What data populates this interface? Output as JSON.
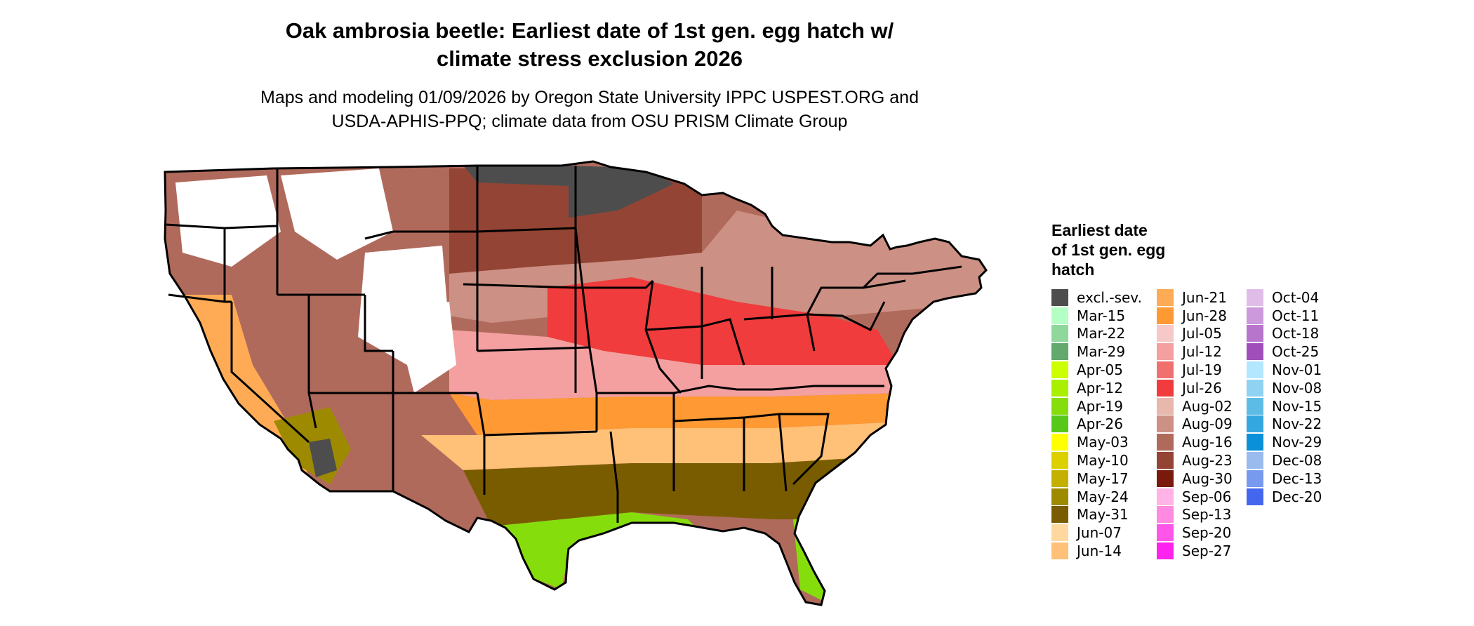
{
  "title": {
    "line1": "Oak ambrosia beetle: Earliest date of 1st gen. egg hatch w/",
    "line2": "climate stress exclusion 2026"
  },
  "subtitle": {
    "line1": "Maps and modeling 01/09/2026 by Oregon State University IPPC USPEST.ORG and",
    "line2": "USDA-APHIS-PPQ; climate data from OSU PRISM Climate Group"
  },
  "legend": {
    "title_lines": [
      "Earliest date",
      "of 1st gen. egg",
      "hatch"
    ],
    "columns": [
      [
        {
          "label": "excl.-sev.",
          "color": "#4d4d4d"
        },
        {
          "label": "Mar-15",
          "color": "#b3ffc4"
        },
        {
          "label": "Mar-22",
          "color": "#8fd79a"
        },
        {
          "label": "Mar-29",
          "color": "#63a86d"
        },
        {
          "label": "Apr-05",
          "color": "#ccff00"
        },
        {
          "label": "Apr-12",
          "color": "#a8f000"
        },
        {
          "label": "Apr-19",
          "color": "#86dd0c"
        },
        {
          "label": "Apr-26",
          "color": "#55c81a"
        },
        {
          "label": "May-03",
          "color": "#ffff00"
        },
        {
          "label": "May-10",
          "color": "#ddd000"
        },
        {
          "label": "May-17",
          "color": "#c4b000"
        },
        {
          "label": "May-24",
          "color": "#9e8a00"
        },
        {
          "label": "May-31",
          "color": "#7a5c00"
        },
        {
          "label": "Jun-07",
          "color": "#ffd8a0"
        },
        {
          "label": "Jun-14",
          "color": "#ffc078"
        }
      ],
      [
        {
          "label": "Jun-21",
          "color": "#ffab55"
        },
        {
          "label": "Jun-28",
          "color": "#ff9933"
        },
        {
          "label": "Jul-05",
          "color": "#f6c8c8"
        },
        {
          "label": "Jul-12",
          "color": "#f4a0a0"
        },
        {
          "label": "Jul-19",
          "color": "#f07070"
        },
        {
          "label": "Jul-26",
          "color": "#f03c3c"
        },
        {
          "label": "Aug-02",
          "color": "#e8b8ac"
        },
        {
          "label": "Aug-09",
          "color": "#cc9184"
        },
        {
          "label": "Aug-16",
          "color": "#b06a5c"
        },
        {
          "label": "Aug-23",
          "color": "#944434"
        },
        {
          "label": "Aug-30",
          "color": "#7a1a0c"
        },
        {
          "label": "Sep-06",
          "color": "#ffb3e6"
        },
        {
          "label": "Sep-13",
          "color": "#ff8ae0"
        },
        {
          "label": "Sep-20",
          "color": "#ff55e8"
        },
        {
          "label": "Sep-27",
          "color": "#ff22ee"
        }
      ],
      [
        {
          "label": "Oct-04",
          "color": "#e0bde8"
        },
        {
          "label": "Oct-11",
          "color": "#cc99dd"
        },
        {
          "label": "Oct-18",
          "color": "#b875cc"
        },
        {
          "label": "Oct-25",
          "color": "#a04fba"
        },
        {
          "label": "Nov-01",
          "color": "#b3e6ff"
        },
        {
          "label": "Nov-08",
          "color": "#8fd2f2"
        },
        {
          "label": "Nov-15",
          "color": "#5cbce6"
        },
        {
          "label": "Nov-22",
          "color": "#33a8e0"
        },
        {
          "label": "Nov-29",
          "color": "#0a90d8"
        },
        {
          "label": "Dec-08",
          "color": "#99bbee"
        },
        {
          "label": "Dec-13",
          "color": "#7799ee"
        },
        {
          "label": "Dec-20",
          "color": "#4466ee"
        }
      ]
    ]
  },
  "map_regions": [
    {
      "name": "west-interior",
      "color": "#b06a5c"
    },
    {
      "name": "northern-plains",
      "color": "#944434"
    },
    {
      "name": "midwest-north",
      "color": "#cc9184"
    },
    {
      "name": "corn-belt",
      "color": "#f03c3c"
    },
    {
      "name": "central-band",
      "color": "#f4a0a0"
    },
    {
      "name": "southern-band",
      "color": "#ff9933"
    },
    {
      "name": "gulf-band",
      "color": "#ffc078"
    },
    {
      "name": "deep-south",
      "color": "#7a5c00"
    },
    {
      "name": "gulf-coast",
      "color": "#86dd0c"
    },
    {
      "name": "california",
      "color": "#ffab55"
    },
    {
      "name": "desert-southwest",
      "color": "#9e8a00"
    },
    {
      "name": "high-mountains",
      "color": "#ffffff"
    },
    {
      "name": "excluded-north",
      "color": "#4d4d4d"
    }
  ]
}
